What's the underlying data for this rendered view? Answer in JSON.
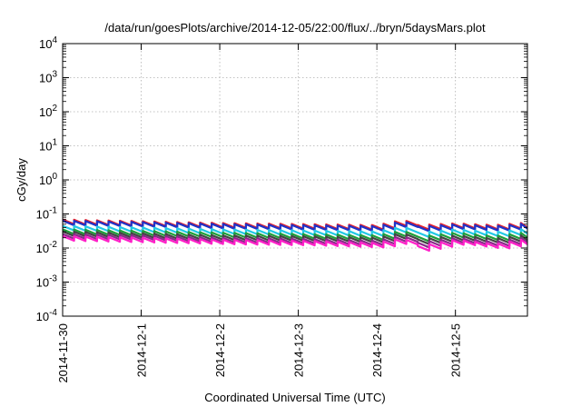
{
  "chart_data": {
    "type": "line",
    "title": "/data/run/goesPlots/archive/2014-12-05/22:00/flux/../bryn/5daysMars.plot",
    "ylabel": "cGy/day",
    "xlabel": "Coordinated Universal Time (UTC)",
    "yscale": "log",
    "ylim": [
      0.0001,
      10000
    ],
    "xlim": [
      "2014-11-30T00:00",
      "2014-12-05T22:00"
    ],
    "grid": true,
    "legend": "none",
    "x_ticks": [
      "2014-11-30",
      "2014-12-1",
      "2014-12-2",
      "2014-12-3",
      "2014-12-4",
      "2014-12-5"
    ],
    "y_ticks": [
      {
        "value": 0.0001,
        "base": "10",
        "exp": "-4"
      },
      {
        "value": 0.001,
        "base": "10",
        "exp": "-3"
      },
      {
        "value": 0.01,
        "base": "10",
        "exp": "-2"
      },
      {
        "value": 0.1,
        "base": "10",
        "exp": "-1"
      },
      {
        "value": 1,
        "base": "10",
        "exp": "0"
      },
      {
        "value": 10,
        "base": "10",
        "exp": "1"
      },
      {
        "value": 100,
        "base": "10",
        "exp": "2"
      },
      {
        "value": 1000,
        "base": "10",
        "exp": "3"
      },
      {
        "value": 10000,
        "base": "10",
        "exp": "4"
      }
    ],
    "x": [
      "2014-11-30T00:00",
      "2014-12-01T00:00",
      "2014-12-02T00:00",
      "2014-12-03T00:00",
      "2014-12-04T00:00",
      "2014-12-04T08:00",
      "2014-12-04T12:00",
      "2014-12-05T00:00",
      "2014-12-05T12:00",
      "2014-12-05T22:00"
    ],
    "series": [
      {
        "color": "#e8202a",
        "values": [
          0.058,
          0.052,
          0.046,
          0.043,
          0.04,
          0.058,
          0.04,
          0.045,
          0.04,
          0.048
        ]
      },
      {
        "color": "#2033c8",
        "values": [
          0.054,
          0.049,
          0.043,
          0.04,
          0.037,
          0.053,
          0.036,
          0.042,
          0.037,
          0.045
        ]
      },
      {
        "color": "#22c8e6",
        "values": [
          0.038,
          0.034,
          0.03,
          0.028,
          0.026,
          0.037,
          0.024,
          0.03,
          0.025,
          0.032
        ]
      },
      {
        "color": "#1f9e3a",
        "values": [
          0.03,
          0.027,
          0.024,
          0.022,
          0.02,
          0.028,
          0.018,
          0.024,
          0.019,
          0.025
        ]
      },
      {
        "color": "#444444",
        "values": [
          0.026,
          0.023,
          0.02,
          0.019,
          0.017,
          0.024,
          0.015,
          0.02,
          0.016,
          0.021
        ]
      },
      {
        "color": "#8a2a8a",
        "values": [
          0.022,
          0.02,
          0.017,
          0.016,
          0.014,
          0.02,
          0.012,
          0.017,
          0.013,
          0.018
        ]
      },
      {
        "color": "#ff20c8",
        "values": [
          0.019,
          0.017,
          0.015,
          0.014,
          0.012,
          0.017,
          0.0095,
          0.015,
          0.011,
          0.016
        ]
      }
    ]
  }
}
